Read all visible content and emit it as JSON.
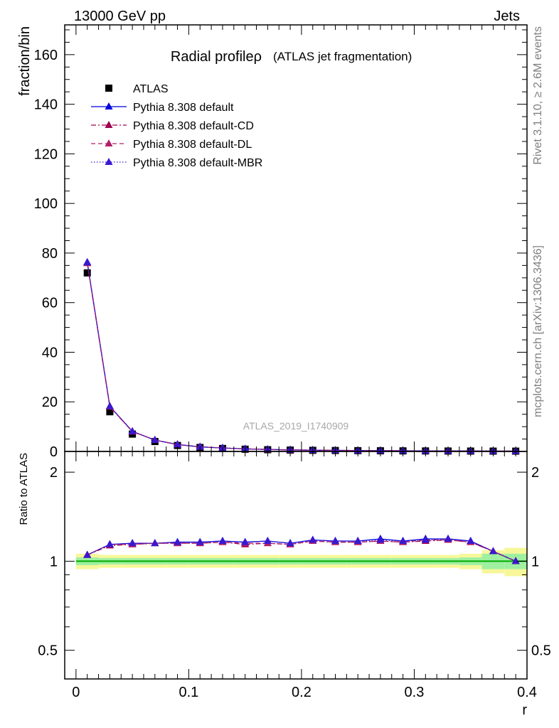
{
  "header": {
    "energy_label": "13000 GeV pp",
    "process_label": "Jets"
  },
  "side": {
    "rivet_label": "Rivet 3.1.10, ≥ 2.6M events",
    "url_label": "mcplots.cern.ch [arXiv:1306.3436]"
  },
  "watermark": "ATLAS_2019_I1740909",
  "colors": {
    "data": "#000000",
    "default": "#0000dd",
    "cd": "#a0004f",
    "dl": "#b0206a",
    "mbr": "#3a18d0",
    "band_yellow": "#f7f79a",
    "band_green": "#9ff0a0",
    "ratio_line": "#00aa00"
  },
  "chart_data": [
    {
      "type": "line",
      "title": "Radial profileρ",
      "title_suffix": "(ATLAS jet fragmentation)",
      "ylabel": "fraction/bin",
      "xlabel": "",
      "xlim": [
        -0.01,
        0.4
      ],
      "ylim": [
        0,
        172
      ],
      "grid": false,
      "legend_position": "top-left",
      "x_ticks": [
        0,
        0.1,
        0.2,
        0.3,
        0.4
      ],
      "y_ticks": [
        0,
        20,
        40,
        60,
        80,
        100,
        120,
        140,
        160
      ],
      "y_tick_labels": [
        "0",
        "20",
        "40",
        "60",
        "80",
        "100",
        "120",
        "140",
        "160"
      ],
      "x": [
        0.01,
        0.03,
        0.05,
        0.07,
        0.09,
        0.11,
        0.13,
        0.15,
        0.17,
        0.19,
        0.21,
        0.23,
        0.25,
        0.27,
        0.29,
        0.31,
        0.33,
        0.35,
        0.37,
        0.39
      ],
      "series": [
        {
          "name": "ATLAS",
          "key": "data",
          "marker": "square",
          "values": [
            72,
            16,
            7,
            4,
            2.4,
            1.6,
            1.2,
            0.9,
            0.7,
            0.55,
            0.45,
            0.38,
            0.32,
            0.27,
            0.23,
            0.2,
            0.17,
            0.15,
            0.13,
            0.12
          ]
        },
        {
          "name": "Pythia 8.308 default",
          "key": "default",
          "marker": "triangle",
          "dash": "solid",
          "values": [
            76.3,
            18.2,
            8.1,
            4.6,
            2.8,
            1.85,
            1.4,
            1.04,
            0.81,
            0.63,
            0.52,
            0.44,
            0.37,
            0.32,
            0.27,
            0.23,
            0.2,
            0.17,
            0.15,
            0.12
          ]
        },
        {
          "name": "Pythia 8.308 default-CD",
          "key": "cd",
          "marker": "triangle",
          "dash": "dashdot",
          "values": [
            75.9,
            18.0,
            8.0,
            4.6,
            2.78,
            1.84,
            1.39,
            1.03,
            0.8,
            0.62,
            0.52,
            0.44,
            0.37,
            0.32,
            0.27,
            0.23,
            0.2,
            0.17,
            0.15,
            0.12
          ]
        },
        {
          "name": "Pythia 8.308 default-DL",
          "key": "dl",
          "marker": "triangle",
          "dash": "dashed",
          "values": [
            76.0,
            18.1,
            8.0,
            4.6,
            2.79,
            1.84,
            1.39,
            1.03,
            0.8,
            0.62,
            0.52,
            0.44,
            0.37,
            0.32,
            0.27,
            0.23,
            0.2,
            0.17,
            0.15,
            0.12
          ]
        },
        {
          "name": "Pythia 8.308 default-MBR",
          "key": "mbr",
          "marker": "triangle",
          "dash": "dotted",
          "values": [
            76.2,
            18.2,
            8.1,
            4.6,
            2.8,
            1.85,
            1.4,
            1.04,
            0.81,
            0.63,
            0.52,
            0.44,
            0.37,
            0.32,
            0.27,
            0.23,
            0.2,
            0.17,
            0.15,
            0.12
          ]
        }
      ]
    },
    {
      "type": "line",
      "title": "",
      "ylabel": "Ratio to ATLAS",
      "xlabel": "r",
      "xlim": [
        -0.01,
        0.4
      ],
      "ylim": [
        0.4,
        2.35
      ],
      "grid": false,
      "x_ticks": [
        0,
        0.1,
        0.2,
        0.3,
        0.4
      ],
      "x_tick_labels": [
        "0",
        "0.1",
        "0.2",
        "0.3",
        "0.4"
      ],
      "y_ticks": [
        0.5,
        1,
        2
      ],
      "y_tick_labels": [
        "0.5",
        "1",
        "2"
      ],
      "x": [
        0.01,
        0.03,
        0.05,
        0.07,
        0.09,
        0.11,
        0.13,
        0.15,
        0.17,
        0.19,
        0.21,
        0.23,
        0.25,
        0.27,
        0.29,
        0.31,
        0.33,
        0.35,
        0.37,
        0.39
      ],
      "band_edges": [
        0.0,
        0.02,
        0.04,
        0.06,
        0.08,
        0.1,
        0.12,
        0.14,
        0.16,
        0.18,
        0.2,
        0.22,
        0.24,
        0.26,
        0.28,
        0.3,
        0.32,
        0.34,
        0.36,
        0.38,
        0.4
      ],
      "band_yellow": [
        0.06,
        0.05,
        0.05,
        0.05,
        0.05,
        0.05,
        0.05,
        0.05,
        0.05,
        0.05,
        0.05,
        0.05,
        0.05,
        0.05,
        0.05,
        0.05,
        0.05,
        0.06,
        0.09,
        0.11
      ],
      "band_green": [
        0.03,
        0.025,
        0.025,
        0.025,
        0.025,
        0.025,
        0.025,
        0.025,
        0.025,
        0.025,
        0.025,
        0.025,
        0.025,
        0.025,
        0.025,
        0.025,
        0.025,
        0.03,
        0.06,
        0.06
      ],
      "series": [
        {
          "name": "Pythia 8.308 default",
          "key": "default",
          "dash": "solid",
          "values": [
            1.05,
            1.14,
            1.15,
            1.15,
            1.16,
            1.16,
            1.17,
            1.16,
            1.17,
            1.15,
            1.18,
            1.17,
            1.17,
            1.19,
            1.17,
            1.19,
            1.19,
            1.17,
            1.08,
            1.0
          ]
        },
        {
          "name": "Pythia 8.308 default-CD",
          "key": "cd",
          "dash": "dashdot",
          "values": [
            1.05,
            1.13,
            1.14,
            1.15,
            1.15,
            1.15,
            1.16,
            1.14,
            1.15,
            1.14,
            1.17,
            1.16,
            1.16,
            1.17,
            1.16,
            1.17,
            1.18,
            1.16,
            1.08,
            1.0
          ]
        },
        {
          "name": "Pythia 8.308 default-DL",
          "key": "dl",
          "dash": "dashed",
          "values": [
            1.05,
            1.14,
            1.14,
            1.15,
            1.15,
            1.15,
            1.16,
            1.15,
            1.15,
            1.14,
            1.17,
            1.16,
            1.16,
            1.17,
            1.16,
            1.18,
            1.18,
            1.16,
            1.08,
            1.0
          ]
        },
        {
          "name": "Pythia 8.308 default-MBR",
          "key": "mbr",
          "dash": "dotted",
          "values": [
            1.05,
            1.14,
            1.15,
            1.15,
            1.16,
            1.16,
            1.17,
            1.16,
            1.17,
            1.15,
            1.18,
            1.17,
            1.17,
            1.18,
            1.17,
            1.18,
            1.19,
            1.17,
            1.08,
            1.0
          ]
        }
      ]
    }
  ]
}
